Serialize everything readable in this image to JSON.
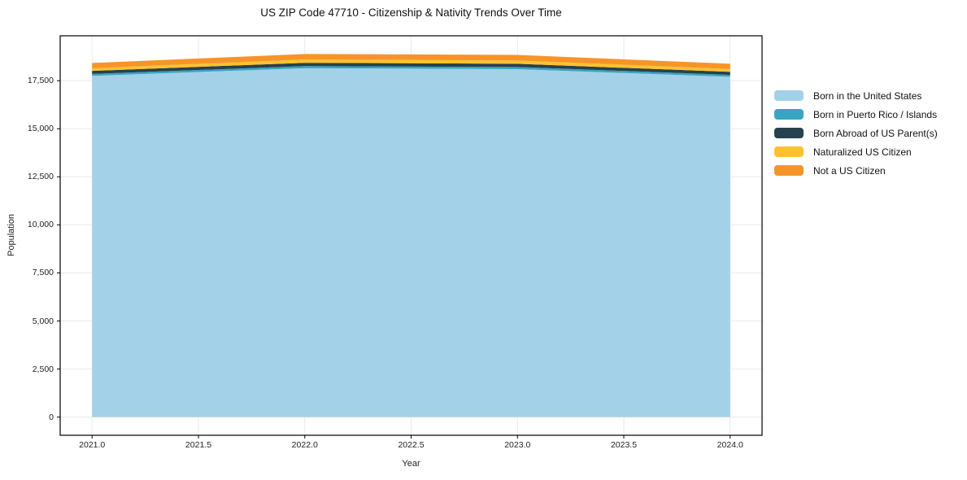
{
  "chart_data": {
    "type": "area",
    "stacked": true,
    "title": "US ZIP Code 47710 - Citizenship & Nativity Trends Over Time",
    "xlabel": "Year",
    "ylabel": "Population",
    "x": [
      2021,
      2022,
      2023,
      2024
    ],
    "series": [
      {
        "name": "Born in the United States",
        "color": "#a3d1e8",
        "values": [
          17750,
          18150,
          18100,
          17700
        ]
      },
      {
        "name": "Born in Puerto Rico / Islands",
        "color": "#3aa5c2",
        "values": [
          100,
          110,
          110,
          100
        ]
      },
      {
        "name": "Born Abroad of US Parent(s)",
        "color": "#27414e",
        "values": [
          160,
          170,
          170,
          160
        ]
      },
      {
        "name": "Naturalized US Citizen",
        "color": "#fcc22f",
        "values": [
          140,
          170,
          170,
          150
        ]
      },
      {
        "name": "Not a US Citizen",
        "color": "#f79428",
        "values": [
          270,
          290,
          290,
          270
        ]
      }
    ],
    "xtick_labels": [
      "2021.0",
      "2021.5",
      "2022.0",
      "2022.5",
      "2023.0",
      "2023.5",
      "2024.0"
    ],
    "xtick_values": [
      2021,
      2021.5,
      2022,
      2022.5,
      2023,
      2023.5,
      2024
    ],
    "ytick_labels": [
      "0",
      "2,500",
      "5,000",
      "7,500",
      "10,000",
      "12,500",
      "15,000",
      "17,500"
    ],
    "ytick_values": [
      0,
      2500,
      5000,
      7500,
      10000,
      12500,
      15000,
      17500
    ],
    "xlim": [
      2020.85,
      2024.15
    ],
    "ylim": [
      -945,
      19835
    ],
    "grid": true,
    "legend_position": "right-outside"
  },
  "colors": {
    "grid": "#eaeaea",
    "spine": "#000000",
    "background": "#ffffff",
    "tick": "#000000"
  }
}
